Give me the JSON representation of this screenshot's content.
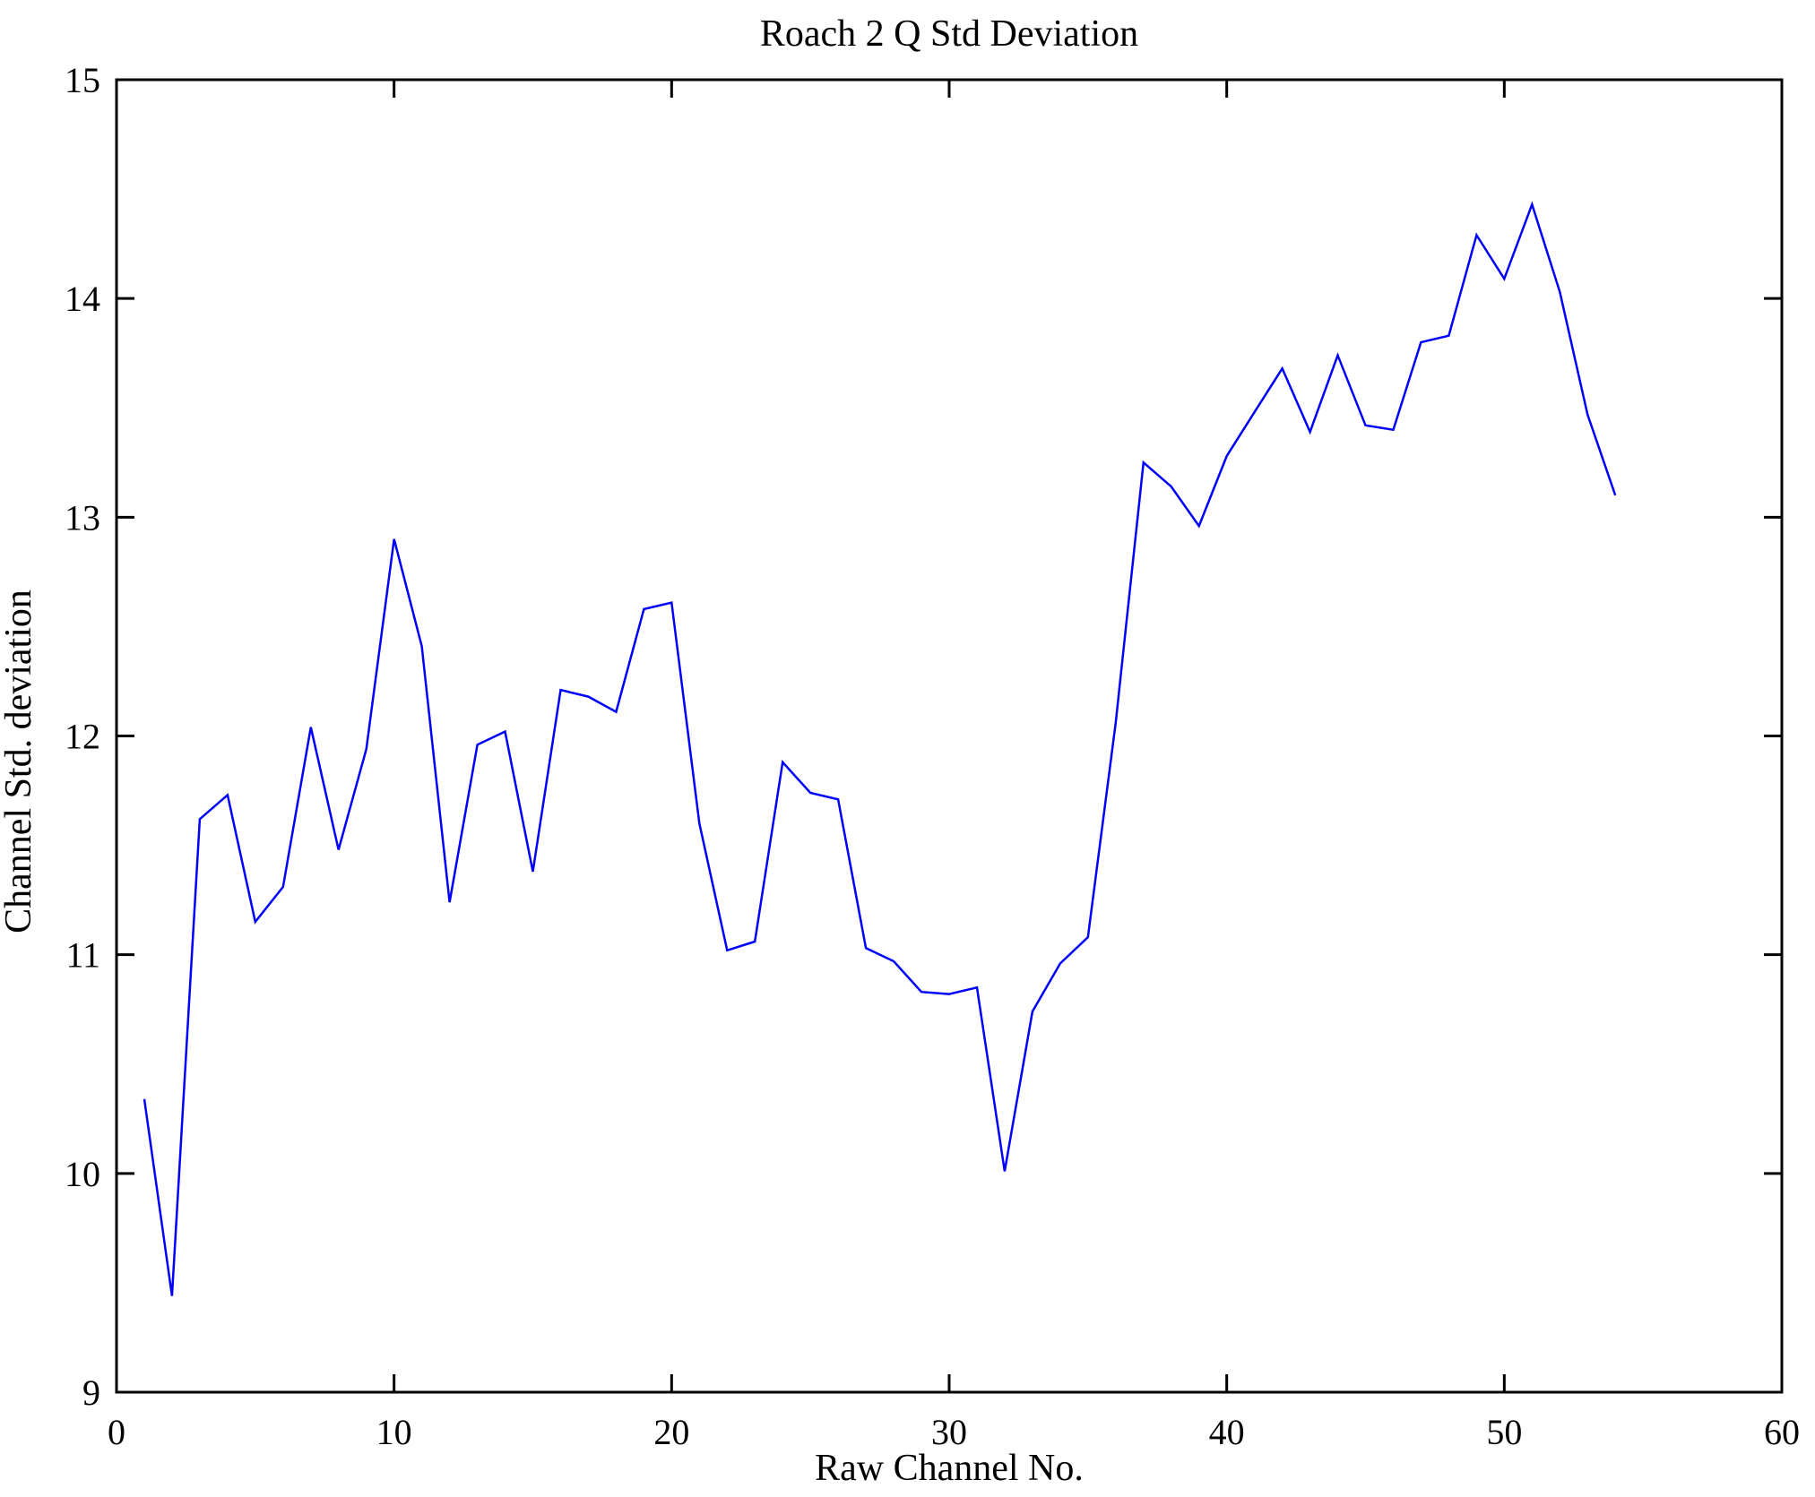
{
  "figure": {
    "title": "Roach 2 Q Std Deviation",
    "xlabel": "Raw Channel No.",
    "ylabel": "Channel Std. deviation"
  },
  "chart_data": {
    "type": "line",
    "title": "Roach 2 Q Std Deviation",
    "xlabel": "Raw Channel No.",
    "ylabel": "Channel Std. deviation",
    "x": [
      1,
      2,
      3,
      4,
      5,
      6,
      7,
      8,
      9,
      10,
      11,
      12,
      13,
      14,
      15,
      16,
      17,
      18,
      19,
      20,
      21,
      22,
      23,
      24,
      25,
      26,
      27,
      28,
      29,
      30,
      31,
      32,
      33,
      34,
      35,
      36,
      37,
      38,
      39,
      40,
      41,
      42,
      43,
      44,
      45,
      46,
      47,
      48,
      49,
      50,
      51,
      52,
      53,
      54
    ],
    "values": [
      10.34,
      9.44,
      11.62,
      11.73,
      11.15,
      11.31,
      12.04,
      11.48,
      11.94,
      12.9,
      12.41,
      11.24,
      11.96,
      12.02,
      11.38,
      12.21,
      12.18,
      12.11,
      12.58,
      12.61,
      11.6,
      11.02,
      11.06,
      11.88,
      11.74,
      11.71,
      11.03,
      10.97,
      10.83,
      10.82,
      10.85,
      10.01,
      10.74,
      10.96,
      11.08,
      12.06,
      13.25,
      13.14,
      12.96,
      13.28,
      13.48,
      13.68,
      13.39,
      13.74,
      13.42,
      13.4,
      13.8,
      13.83,
      14.29,
      14.09,
      14.43,
      14.03,
      13.47,
      13.1
    ],
    "xlim": [
      0,
      60
    ],
    "ylim": [
      9,
      15
    ],
    "xticks": [
      0,
      10,
      20,
      30,
      40,
      50,
      60
    ],
    "yticks": [
      9,
      10,
      11,
      12,
      13,
      14,
      15
    ],
    "grid": false,
    "legend_position": "none",
    "line_color": "#0000FF",
    "axis_color": "#000000",
    "background_color": "#FFFFFF"
  }
}
